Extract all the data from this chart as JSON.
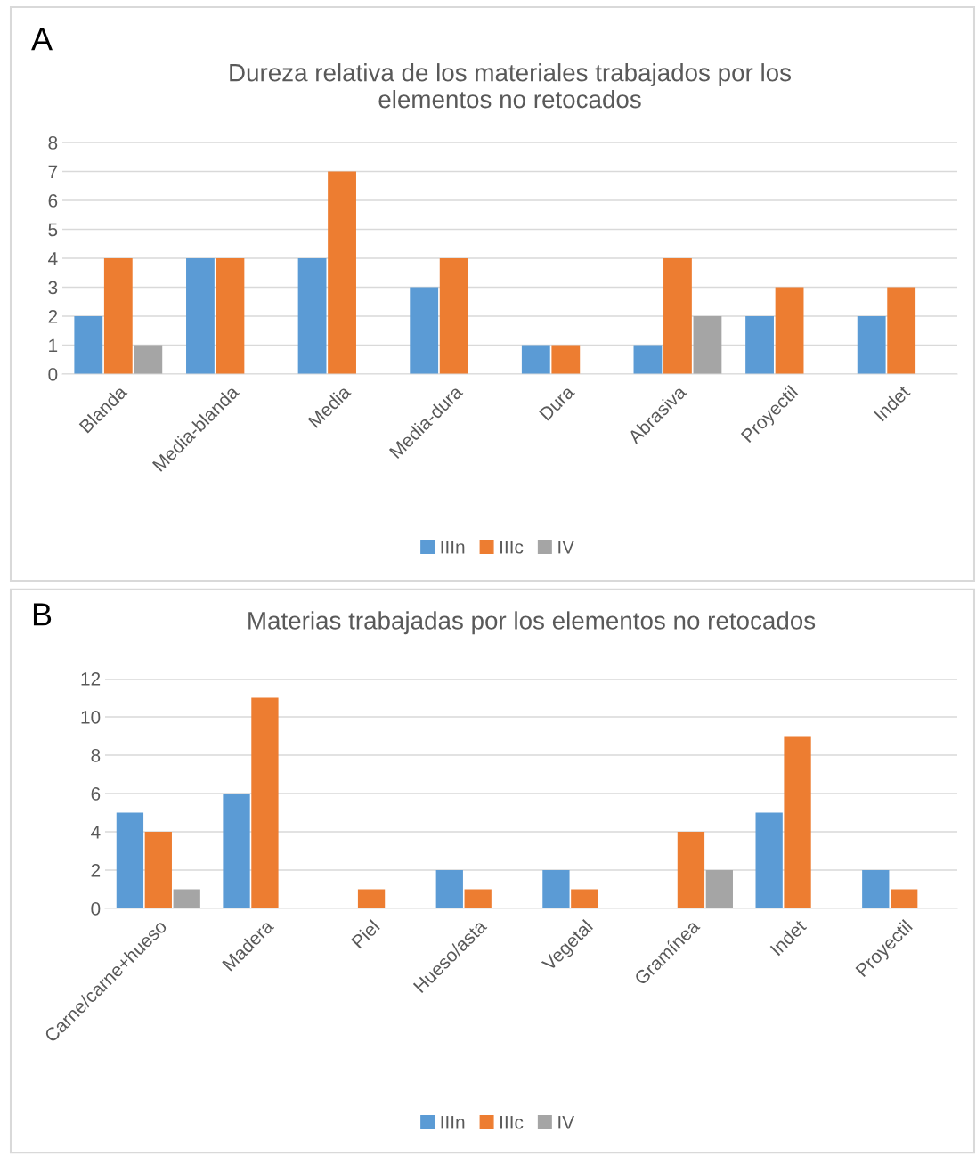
{
  "chart_data": [
    {
      "type": "bar",
      "title": "Dureza relativa de los materiales trabajados por los\nelementos no retocados",
      "annotations": [
        "A"
      ],
      "categories": [
        "Blanda",
        "Media-blanda",
        "Media",
        "Media-dura",
        "Dura",
        "Abrasiva",
        "Proyectil",
        "Indet"
      ],
      "series": [
        {
          "name": "IIIn",
          "color": "#5b9bd5",
          "values": [
            2,
            4,
            4,
            3,
            1,
            1,
            2,
            2
          ]
        },
        {
          "name": "IIIc",
          "color": "#ed7d31",
          "values": [
            4,
            4,
            7,
            4,
            1,
            4,
            3,
            3
          ]
        },
        {
          "name": "IV",
          "color": "#a5a5a5",
          "values": [
            1,
            null,
            null,
            null,
            null,
            2,
            null,
            null
          ]
        }
      ],
      "ylim": [
        0,
        8
      ],
      "yticks": [
        0,
        1,
        2,
        3,
        4,
        5,
        6,
        7,
        8
      ],
      "grid": "y",
      "legend": "bottom"
    },
    {
      "type": "bar",
      "title": "Materias trabajadas por los elementos no retocados",
      "annotations": [
        "B"
      ],
      "categories": [
        "Carne/carne+hueso",
        "Madera",
        "Piel",
        "Hueso/asta",
        "Vegetal",
        "Gramínea",
        "Indet",
        "Proyectil"
      ],
      "series": [
        {
          "name": "IIIn",
          "color": "#5b9bd5",
          "values": [
            5,
            6,
            null,
            2,
            2,
            null,
            5,
            2
          ]
        },
        {
          "name": "IIIc",
          "color": "#ed7d31",
          "values": [
            4,
            11,
            1,
            1,
            1,
            4,
            9,
            1
          ]
        },
        {
          "name": "IV",
          "color": "#a5a5a5",
          "values": [
            1,
            null,
            null,
            null,
            null,
            2,
            null,
            null
          ]
        }
      ],
      "ylim": [
        0,
        12
      ],
      "yticks": [
        0,
        2,
        4,
        6,
        8,
        10,
        12
      ],
      "grid": "y",
      "legend": "bottom"
    }
  ]
}
